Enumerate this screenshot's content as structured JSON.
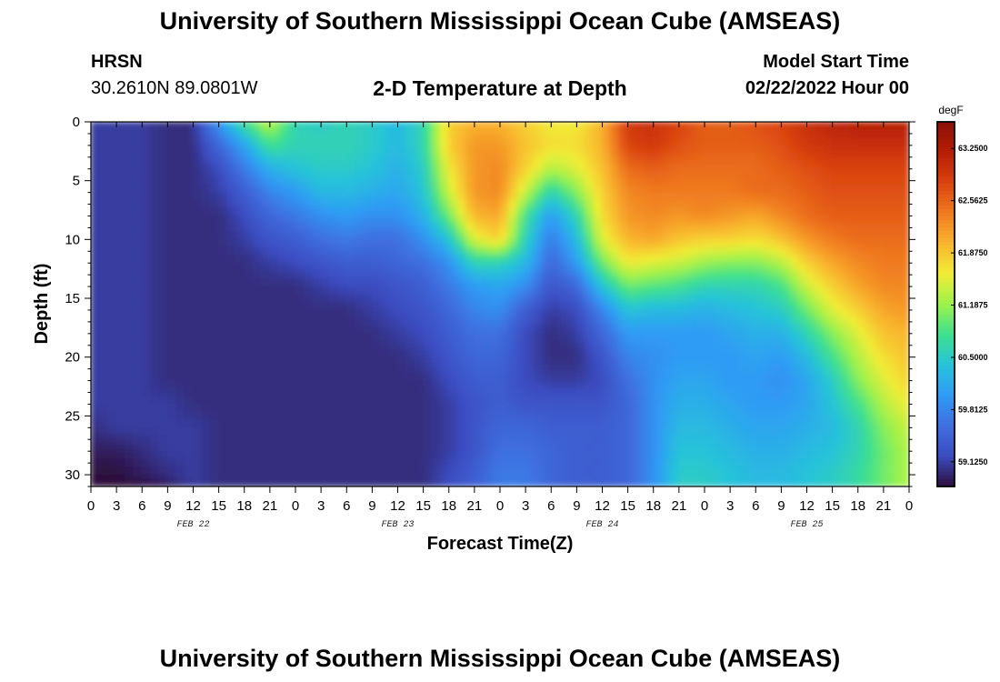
{
  "header": {
    "title": "University of Southern Mississippi Ocean Cube (AMSEAS)",
    "station": "HRSN",
    "coords": "30.2610N  89.0801W",
    "model_start_label": "Model Start Time",
    "model_start_value": "02/22/2022 Hour 00",
    "footer_title": "University of Southern Mississippi Ocean Cube (AMSEAS)"
  },
  "colors": {
    "ramp": [
      "#2d0f3e",
      "#3b4cc0",
      "#3f6fe0",
      "#2f9bf5",
      "#27c3d9",
      "#3ee08f",
      "#9ef24b",
      "#f2ec36",
      "#f9b42e",
      "#f07a20",
      "#d9420f",
      "#b51d05",
      "#8a1006"
    ]
  },
  "chart_data": {
    "type": "heatmap",
    "title": "2-D Temperature at Depth",
    "xlabel": "Forecast Time(Z)",
    "ylabel": "Depth (ft)",
    "colorbar_unit": "degF",
    "x_tick_labels": [
      "0",
      "3",
      "6",
      "9",
      "12",
      "15",
      "18",
      "21",
      "0",
      "3",
      "6",
      "9",
      "12",
      "15",
      "18",
      "21",
      "0",
      "3",
      "6",
      "9",
      "12",
      "15",
      "18",
      "21",
      "0",
      "3",
      "6",
      "9",
      "12",
      "15",
      "18",
      "21",
      "0"
    ],
    "date_labels": [
      "FEB 22",
      "FEB 23",
      "FEB 24",
      "FEB 25"
    ],
    "y_ticks": [
      0,
      5,
      10,
      15,
      20,
      25,
      30
    ],
    "y_tick_labels": [
      "0",
      "5",
      "10",
      "15",
      "20",
      "25",
      "30"
    ],
    "ylim": [
      0,
      31
    ],
    "xlim_hours": [
      0,
      96
    ],
    "colorbar_ticks": [
      59.125,
      59.8125,
      60.5,
      61.1875,
      61.875,
      62.5625,
      63.25
    ],
    "colorbar_tick_labels": [
      "59.1250",
      "59.8125",
      "60.5000",
      "61.1875",
      "61.8750",
      "62.5625",
      "63.2500"
    ],
    "colorbar_range": [
      58.8,
      63.6
    ],
    "forecast_hours": [
      0,
      3,
      6,
      9,
      12,
      15,
      18,
      21,
      24,
      27,
      30,
      33,
      36,
      39,
      42,
      45,
      48,
      51,
      54,
      57,
      60,
      63,
      66,
      69,
      72,
      75,
      78,
      81,
      84,
      87,
      90,
      93,
      96
    ],
    "depths_ft": [
      0,
      2,
      4,
      6,
      8,
      10,
      12,
      14,
      16,
      18,
      20,
      22,
      24,
      26,
      28,
      30,
      31
    ],
    "temperature_degF": [
      [
        59.1,
        59.1,
        59.1,
        59.0,
        59.0,
        60.0,
        60.8,
        61.4,
        60.6,
        60.5,
        60.6,
        60.5,
        60.3,
        60.6,
        61.8,
        62.0,
        62.0,
        61.8,
        61.6,
        61.6,
        62.0,
        62.9,
        63.0,
        62.8,
        62.6,
        62.6,
        62.7,
        62.8,
        63.0,
        63.1,
        63.2,
        63.2,
        63.2
      ],
      [
        59.1,
        59.1,
        59.1,
        59.0,
        59.0,
        59.5,
        60.1,
        60.8,
        60.6,
        60.6,
        60.6,
        60.5,
        60.3,
        60.6,
        61.8,
        62.2,
        62.2,
        61.9,
        61.7,
        61.7,
        62.0,
        62.8,
        62.9,
        62.7,
        62.6,
        62.6,
        62.6,
        62.7,
        62.9,
        63.0,
        63.0,
        63.0,
        63.0
      ],
      [
        59.1,
        59.1,
        59.1,
        59.0,
        59.0,
        59.2,
        59.7,
        60.2,
        60.4,
        60.5,
        60.5,
        60.4,
        60.2,
        60.5,
        61.6,
        62.2,
        62.3,
        61.8,
        61.3,
        61.5,
        61.9,
        62.5,
        62.6,
        62.5,
        62.5,
        62.5,
        62.5,
        62.6,
        62.7,
        62.8,
        62.8,
        62.8,
        62.8
      ],
      [
        59.1,
        59.1,
        59.1,
        59.0,
        59.0,
        59.1,
        59.4,
        59.8,
        60.0,
        60.3,
        60.3,
        60.2,
        60.1,
        60.4,
        61.4,
        62.2,
        62.3,
        61.4,
        60.6,
        61.1,
        61.8,
        62.3,
        62.4,
        62.4,
        62.4,
        62.4,
        62.5,
        62.5,
        62.6,
        62.7,
        62.7,
        62.7,
        62.7
      ],
      [
        59.1,
        59.1,
        59.1,
        59.0,
        59.0,
        59.0,
        59.2,
        59.5,
        59.7,
        59.9,
        60.0,
        59.9,
        59.9,
        60.2,
        61.0,
        62.0,
        62.1,
        60.8,
        60.0,
        60.6,
        61.7,
        62.2,
        62.3,
        62.2,
        62.3,
        62.2,
        62.1,
        62.3,
        62.5,
        62.6,
        62.6,
        62.6,
        62.6
      ],
      [
        59.1,
        59.1,
        59.1,
        59.0,
        59.0,
        59.0,
        59.1,
        59.3,
        59.4,
        59.6,
        59.7,
        59.6,
        59.6,
        59.9,
        60.4,
        61.5,
        61.8,
        60.6,
        59.7,
        60.3,
        61.5,
        62.0,
        62.1,
        61.9,
        61.8,
        61.8,
        61.7,
        61.9,
        62.2,
        62.4,
        62.5,
        62.5,
        62.5
      ],
      [
        59.1,
        59.1,
        59.1,
        59.0,
        59.0,
        59.0,
        59.0,
        59.1,
        59.2,
        59.3,
        59.4,
        59.4,
        59.5,
        59.6,
        59.9,
        60.6,
        60.6,
        60.3,
        59.5,
        60.0,
        61.0,
        61.6,
        61.5,
        61.4,
        61.2,
        61.1,
        61.1,
        61.3,
        61.8,
        62.1,
        62.3,
        62.4,
        62.4
      ],
      [
        59.1,
        59.1,
        59.1,
        59.0,
        59.0,
        59.0,
        59.0,
        59.0,
        59.0,
        59.1,
        59.2,
        59.2,
        59.3,
        59.4,
        59.7,
        60.0,
        60.1,
        59.9,
        59.3,
        59.5,
        60.4,
        61.0,
        60.9,
        60.8,
        60.6,
        60.6,
        60.6,
        60.8,
        61.4,
        61.8,
        62.1,
        62.3,
        62.3
      ],
      [
        59.1,
        59.1,
        59.1,
        59.0,
        59.0,
        59.0,
        59.0,
        59.0,
        59.0,
        59.0,
        59.0,
        59.1,
        59.2,
        59.3,
        59.5,
        59.8,
        59.9,
        59.4,
        59.1,
        59.2,
        59.8,
        60.4,
        60.3,
        60.3,
        60.2,
        60.3,
        60.4,
        60.5,
        61.0,
        61.5,
        61.8,
        62.1,
        62.2
      ],
      [
        59.1,
        59.1,
        59.1,
        59.0,
        59.0,
        59.0,
        59.0,
        59.0,
        59.0,
        59.0,
        59.0,
        59.0,
        59.1,
        59.2,
        59.4,
        59.6,
        59.6,
        59.2,
        59.0,
        59.1,
        59.5,
        60.0,
        60.0,
        60.0,
        60.0,
        60.1,
        60.2,
        60.2,
        60.6,
        61.1,
        61.5,
        61.9,
        62.0
      ],
      [
        59.1,
        59.1,
        59.1,
        59.0,
        59.0,
        59.0,
        59.0,
        59.0,
        59.0,
        59.0,
        59.0,
        59.0,
        59.0,
        59.1,
        59.3,
        59.5,
        59.5,
        59.2,
        59.0,
        59.0,
        59.3,
        59.8,
        59.9,
        60.0,
        60.0,
        60.0,
        60.1,
        60.0,
        60.3,
        60.8,
        61.3,
        61.7,
        61.9
      ],
      [
        59.1,
        59.1,
        59.1,
        59.0,
        59.0,
        59.0,
        59.0,
        59.0,
        59.0,
        59.0,
        59.0,
        59.0,
        59.0,
        59.0,
        59.2,
        59.4,
        59.4,
        59.2,
        59.1,
        59.1,
        59.2,
        59.6,
        59.9,
        60.1,
        60.1,
        60.0,
        60.0,
        59.9,
        60.1,
        60.5,
        61.1,
        61.5,
        61.8
      ],
      [
        59.1,
        59.1,
        59.1,
        59.1,
        59.0,
        59.0,
        59.0,
        59.0,
        59.0,
        59.0,
        59.0,
        59.0,
        59.0,
        59.0,
        59.1,
        59.3,
        59.4,
        59.3,
        59.3,
        59.3,
        59.3,
        59.5,
        59.9,
        60.2,
        60.2,
        60.1,
        60.0,
        60.0,
        60.1,
        60.4,
        60.8,
        61.3,
        61.6
      ],
      [
        59.0,
        59.1,
        59.1,
        59.1,
        59.1,
        59.0,
        59.0,
        59.0,
        59.0,
        59.0,
        59.0,
        59.0,
        59.0,
        59.0,
        59.1,
        59.3,
        59.5,
        59.5,
        59.4,
        59.4,
        59.4,
        59.5,
        59.9,
        60.3,
        60.3,
        60.2,
        60.1,
        60.1,
        60.2,
        60.3,
        60.6,
        61.1,
        61.4
      ],
      [
        58.9,
        58.9,
        59.0,
        59.1,
        59.1,
        59.0,
        59.0,
        59.0,
        59.0,
        59.0,
        59.0,
        59.0,
        59.0,
        59.0,
        59.1,
        59.3,
        59.6,
        59.6,
        59.5,
        59.4,
        59.4,
        59.5,
        59.9,
        60.4,
        60.4,
        60.3,
        60.2,
        60.2,
        60.3,
        60.4,
        60.6,
        61.0,
        61.3
      ],
      [
        58.8,
        58.8,
        58.9,
        59.0,
        59.1,
        59.0,
        59.0,
        59.0,
        59.0,
        59.0,
        59.0,
        59.0,
        59.0,
        59.0,
        59.2,
        59.4,
        59.7,
        59.7,
        59.5,
        59.4,
        59.4,
        59.5,
        59.9,
        60.5,
        60.5,
        60.4,
        60.3,
        60.3,
        60.4,
        60.5,
        60.7,
        61.0,
        61.3
      ],
      [
        58.8,
        58.8,
        58.8,
        58.9,
        59.1,
        59.0,
        59.0,
        59.0,
        59.0,
        59.0,
        59.0,
        59.0,
        59.0,
        59.0,
        59.2,
        59.4,
        59.7,
        59.7,
        59.5,
        59.4,
        59.4,
        59.5,
        59.9,
        60.5,
        60.5,
        60.4,
        60.3,
        60.3,
        60.4,
        60.5,
        60.7,
        61.0,
        61.3
      ]
    ]
  }
}
